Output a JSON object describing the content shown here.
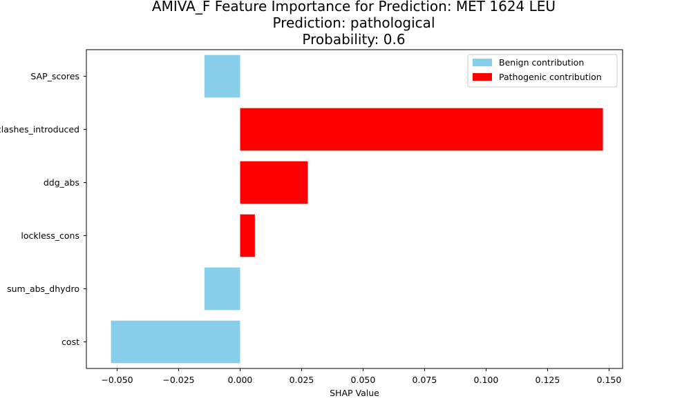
{
  "chart_data": {
    "type": "bar",
    "orientation": "horizontal",
    "title_lines": [
      "AMIVA_F Feature Importance for Prediction: MET 1624 LEU",
      "Prediction: pathological",
      "Probability: 0.6"
    ],
    "xlabel": "SHAP Value",
    "ylabel": "",
    "categories": [
      "SAP_scores",
      "clashes_introduced",
      "ddg_abs",
      "lockless_cons",
      "sum_abs_dhydro",
      "cost"
    ],
    "values": [
      -0.0145,
      0.1475,
      0.0275,
      0.006,
      -0.0145,
      -0.0525
    ],
    "xlim": [
      -0.0625,
      0.1555
    ],
    "xticks": [
      -0.05,
      -0.025,
      0.0,
      0.025,
      0.05,
      0.075,
      0.1,
      0.125,
      0.15
    ],
    "xtick_labels": [
      "−0.050",
      "−0.025",
      "0.000",
      "0.025",
      "0.050",
      "0.075",
      "0.100",
      "0.125",
      "0.150"
    ],
    "grid": false,
    "legend": {
      "placement": "top-right",
      "entries": [
        {
          "label": "Benign contribution",
          "color": "#87ceeb"
        },
        {
          "label": "Pathogenic contribution",
          "color": "#ff0000"
        }
      ]
    },
    "colors": {
      "benign": "#87ceeb",
      "pathogenic": "#ff0000"
    }
  }
}
